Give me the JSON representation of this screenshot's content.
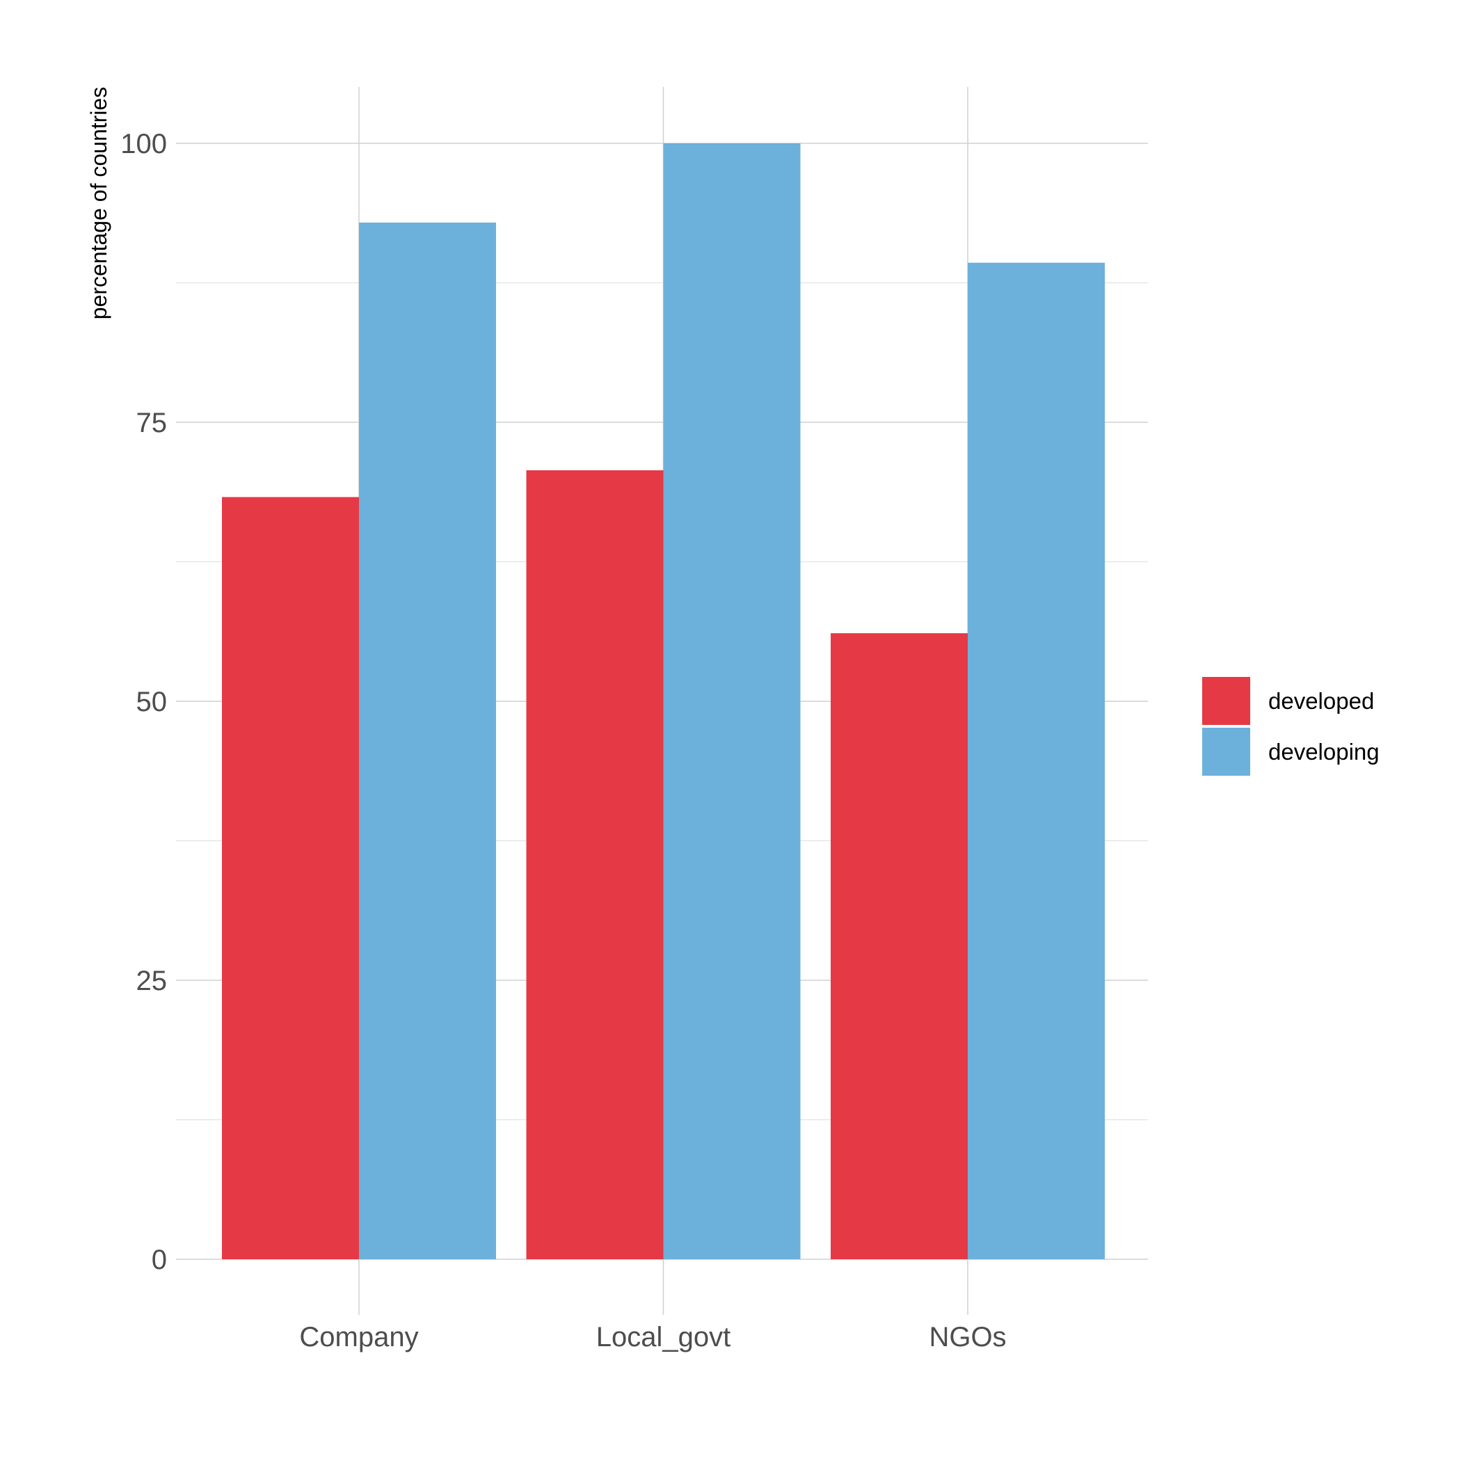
{
  "chart_data": {
    "type": "bar",
    "categories": [
      "Company",
      "Local_govt",
      "NGOs"
    ],
    "series": [
      {
        "name": "developed",
        "color": "#e63946",
        "values": [
          68.3,
          70.7,
          56.1
        ]
      },
      {
        "name": "developing",
        "color": "#6cb1db",
        "values": [
          92.9,
          100,
          89.3
        ]
      }
    ],
    "title": "",
    "xlabel": "",
    "ylabel": "percentage of countries",
    "ylim": [
      0,
      100
    ],
    "yticks": [
      "0",
      "25",
      "50",
      "75",
      "100"
    ],
    "grid": true,
    "legend_position": "right"
  }
}
